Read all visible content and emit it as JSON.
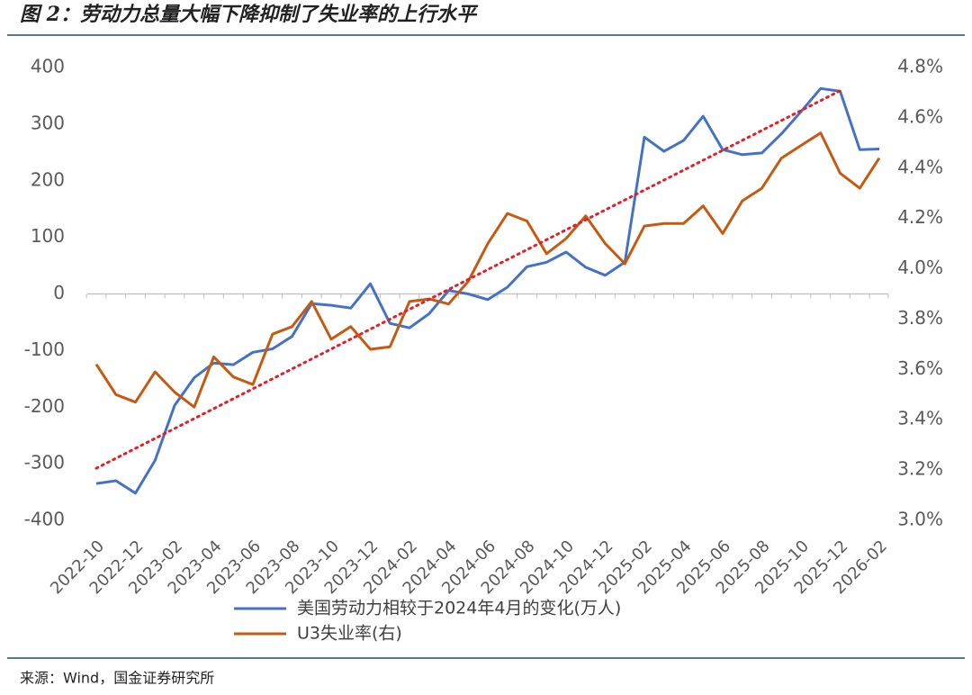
{
  "chart_data": {
    "type": "line",
    "title": "图 2：劳动力总量大幅下降抑制了失业率的上行水平",
    "source": "来源：Wind，国金证券研究所",
    "categories": [
      "2022-10",
      null,
      "2022-12",
      null,
      "2023-02",
      null,
      "2023-04",
      null,
      "2023-06",
      null,
      "2023-08",
      null,
      "2023-10",
      null,
      "2023-12",
      null,
      "2024-02",
      null,
      "2024-04",
      null,
      "2024-06",
      null,
      "2024-08",
      null,
      "2024-10",
      null,
      "2024-12",
      null,
      "2025-02",
      null,
      "2025-04",
      null,
      "2025-06",
      null,
      "2025-08",
      null,
      "2025-10",
      null,
      "2025-12",
      null,
      "2026-02"
    ],
    "series": [
      {
        "name": "美国劳动力相较于2024年4月的变化(万人)",
        "color": "#4472c4",
        "values": [
          -335,
          -330,
          -352,
          -294,
          -197,
          -148,
          -122,
          -125,
          -103,
          -97,
          -75,
          -17,
          -20,
          -25,
          18,
          -52,
          -60,
          -35,
          6,
          0,
          -10,
          12,
          48,
          56,
          74,
          47,
          33,
          56,
          277,
          252,
          271,
          314,
          255,
          246,
          249,
          283,
          322,
          363,
          358,
          255,
          256
        ]
      },
      {
        "name": "U3失业率(右)",
        "color": "#c55a11",
        "axis": "y2",
        "values": [
          3.62,
          3.5,
          3.47,
          3.59,
          3.51,
          3.45,
          3.65,
          3.57,
          3.54,
          3.74,
          3.77,
          3.87,
          3.72,
          3.77,
          3.68,
          3.69,
          3.87,
          3.88,
          3.86,
          3.95,
          4.1,
          4.22,
          4.19,
          4.06,
          4.12,
          4.21,
          4.1,
          4.02,
          4.17,
          4.18,
          4.18,
          4.25,
          4.14,
          4.27,
          4.32,
          4.44,
          4.49,
          4.54,
          4.38,
          4.32,
          4.44
        ]
      }
    ],
    "trendline": {
      "color": "#e0202a",
      "from": "2022-10",
      "to": "2025-12",
      "values": [
        -308,
        359
      ]
    },
    "ylim": [
      -400,
      400
    ],
    "yticks": [
      -400,
      -300,
      -200,
      -100,
      0,
      100,
      200,
      300,
      400
    ],
    "y2lim": [
      3.0,
      4.8
    ],
    "y2ticks": [
      {
        "value": 3.0,
        "label": "3.0%"
      },
      {
        "value": 3.2,
        "label": "3.2%"
      },
      {
        "value": 3.4,
        "label": "3.4%"
      },
      {
        "value": 3.6,
        "label": "3.6%"
      },
      {
        "value": 3.8,
        "label": "3.8%"
      },
      {
        "value": 4.0,
        "label": "4.0%"
      },
      {
        "value": 4.2,
        "label": "4.2%"
      },
      {
        "value": 4.4,
        "label": "4.4%"
      },
      {
        "value": 4.6,
        "label": "4.6%"
      },
      {
        "value": 4.8,
        "label": "4.8%"
      }
    ],
    "grid": false
  }
}
